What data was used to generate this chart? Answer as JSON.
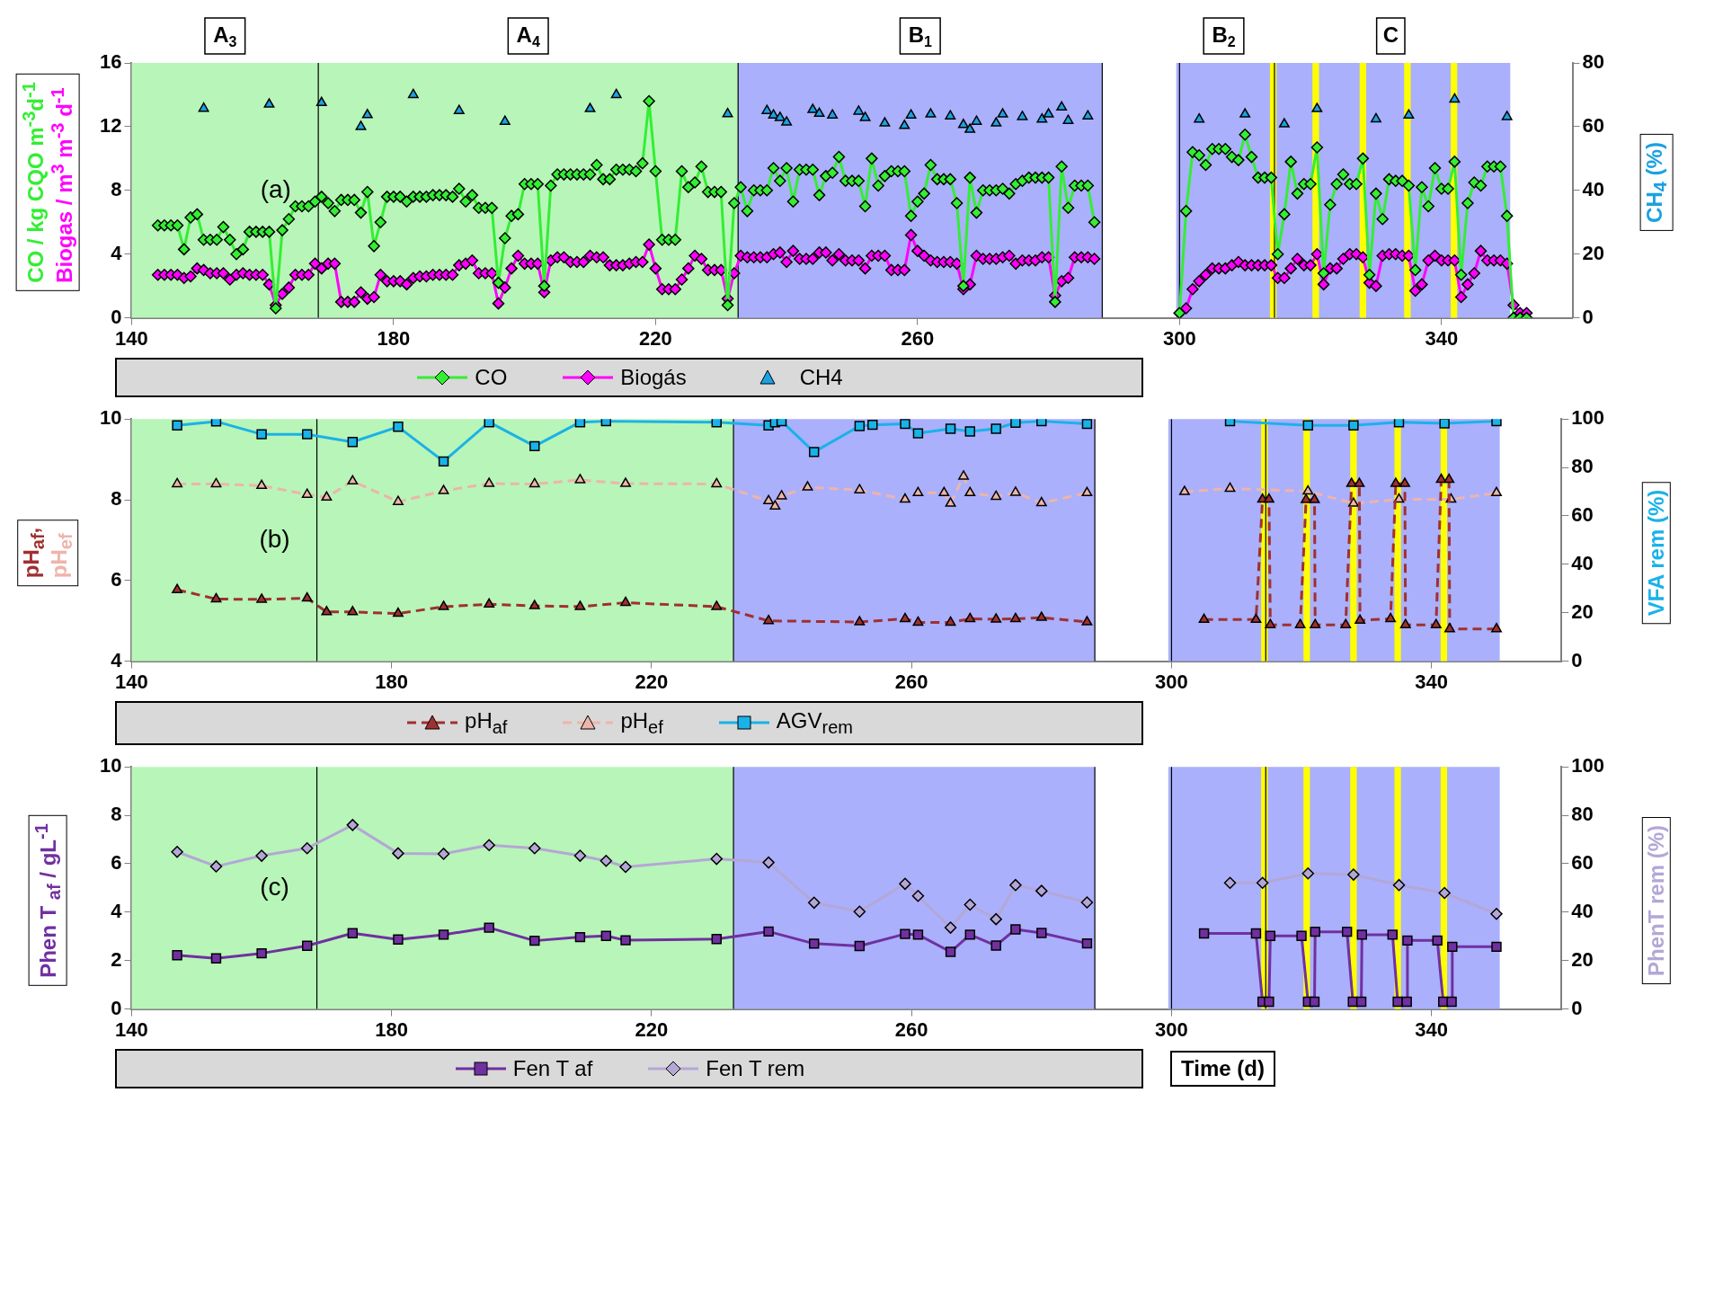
{
  "chart_data": [
    {
      "type": "line",
      "ylabel": [
        "CO / kg CQO m$^{-3}$d$^{-1}$",
        "Biogas / m$^{3}$ m$^{-3}$ d$^{-1}$"
      ],
      "y2label": "CH$_{4}$ (%)",
      "annotations": [
        "(a)"
      ],
      "legend": "bottom",
      "xlim": [
        140,
        360
      ],
      "xticks": [
        140,
        180,
        220,
        260,
        300,
        340
      ],
      "ylim": [
        0,
        16
      ],
      "yticks": [
        0,
        4,
        8,
        12,
        16
      ],
      "y2lim": [
        0,
        80
      ],
      "y2ticks": [
        0,
        20,
        40,
        60,
        80
      ],
      "x": [
        144,
        145,
        146,
        147,
        148,
        149,
        150,
        151,
        152,
        153,
        154,
        155,
        156,
        157,
        158,
        159,
        160,
        161,
        162,
        163,
        164,
        165,
        166,
        167,
        168,
        169,
        170,
        171,
        172,
        173,
        174,
        175,
        176,
        177,
        178,
        179,
        180,
        181,
        182,
        183,
        184,
        185,
        186,
        187,
        188,
        189,
        190,
        191,
        192,
        193,
        194,
        195,
        196,
        197,
        198,
        199,
        200,
        201,
        202,
        203,
        204,
        205,
        206,
        207,
        208,
        209,
        210,
        211,
        212,
        213,
        214,
        215,
        216,
        217,
        218,
        219,
        220,
        221,
        222,
        223,
        224,
        225,
        226,
        227,
        228,
        229,
        230,
        231,
        232,
        233,
        234,
        235,
        236,
        237,
        238,
        239,
        240,
        241,
        242,
        243,
        244,
        245,
        246,
        247,
        248,
        249,
        250,
        251,
        252,
        253,
        254,
        255,
        256,
        257,
        258,
        259,
        260,
        261,
        262,
        263,
        264,
        265,
        266,
        267,
        268,
        269,
        270,
        271,
        272,
        273,
        274,
        275,
        276,
        277,
        278,
        279,
        280,
        281,
        282,
        283,
        284,
        285,
        286,
        287,
        293,
        300,
        301,
        302,
        303,
        304,
        305,
        306,
        307,
        308,
        309,
        310,
        311,
        312,
        313,
        314,
        315,
        316,
        317,
        318,
        319,
        320,
        321,
        322,
        323,
        324,
        325,
        326,
        327,
        328,
        329,
        330,
        331,
        332,
        333,
        334,
        335,
        336,
        337,
        338,
        339,
        340,
        341,
        342,
        343,
        344,
        345,
        346,
        347,
        348,
        349,
        350,
        351,
        352,
        353
      ],
      "bands": [
        {
          "axis": "x",
          "from": 140,
          "to": 168.5,
          "label": "A$_{3}$",
          "color": "#b8f5b8"
        },
        {
          "axis": "x",
          "from": 168.5,
          "to": 232.6,
          "label": "A$_{4}$",
          "color": "#b8f5b8"
        },
        {
          "axis": "x",
          "from": 232.6,
          "to": 288.2,
          "label": "B$_{1}$",
          "color": "#aab0fc"
        },
        {
          "axis": "x",
          "from": 299.5,
          "to": 314,
          "label": "B$_{2}$",
          "color": "#aab0fc"
        },
        {
          "axis": "x",
          "from": 314,
          "to": 350.5,
          "label": "C",
          "color": "#aab0fc"
        },
        {
          "axis": "x",
          "from": 313.8,
          "to": 314.8,
          "color": "#ffff00"
        },
        {
          "axis": "x",
          "from": 320.3,
          "to": 321.3,
          "color": "#ffff00"
        },
        {
          "axis": "x",
          "from": 327.5,
          "to": 328.5,
          "color": "#ffff00"
        },
        {
          "axis": "x",
          "from": 334.3,
          "to": 335.3,
          "color": "#ffff00"
        },
        {
          "axis": "x",
          "from": 341.4,
          "to": 342.4,
          "color": "#ffff00"
        }
      ],
      "ref_lines": [
        {
          "axis": "x",
          "value": 168.5,
          "color": "#000000"
        },
        {
          "axis": "x",
          "value": 232.6,
          "color": "#000000"
        },
        {
          "axis": "x",
          "value": 288.2,
          "color": "#000000"
        },
        {
          "axis": "x",
          "value": 300,
          "color": "#000000"
        },
        {
          "axis": "x",
          "value": 314.5,
          "color": "#000000"
        }
      ],
      "series": [
        {
          "name": "CO",
          "color": "#33ee33",
          "marker": "diamond",
          "line_style": "solid",
          "values": [
            5.8,
            5.8,
            5.8,
            5.8,
            4.3,
            6.3,
            6.5,
            4.9,
            4.9,
            4.9,
            5.7,
            4.9,
            4.0,
            4.3,
            5.4,
            5.4,
            5.4,
            5.4,
            0.6,
            5.5,
            6.2,
            7.0,
            7.0,
            7.0,
            7.3,
            7.6,
            7.2,
            6.7,
            7.4,
            7.4,
            7.4,
            6.6,
            7.9,
            4.5,
            6.0,
            7.6,
            7.6,
            7.6,
            7.3,
            7.6,
            7.6,
            7.6,
            7.7,
            7.7,
            7.7,
            7.6,
            8.1,
            7.3,
            7.7,
            6.9,
            6.9,
            6.9,
            2.2,
            5.0,
            6.4,
            6.5,
            8.4,
            8.4,
            8.4,
            2.0,
            8.3,
            9.0,
            9.0,
            9.0,
            9.0,
            9.0,
            9.0,
            9.6,
            8.7,
            8.7,
            9.3,
            9.3,
            9.3,
            9.2,
            9.7,
            13.6,
            9.2,
            4.9,
            4.9,
            4.9,
            9.2,
            8.2,
            8.5,
            9.5,
            7.9,
            7.9,
            7.9,
            0.8,
            7.2,
            8.2,
            6.7,
            8.0,
            8.0,
            8.0,
            9.4,
            8.6,
            9.4,
            7.3,
            9.3,
            9.3,
            9.3,
            7.7,
            8.9,
            9.1,
            10.1,
            8.6,
            8.6,
            8.6,
            7.0,
            10.0,
            8.3,
            8.9,
            9.2,
            9.2,
            9.2,
            6.4,
            7.3,
            7.8,
            9.6,
            8.7,
            8.7,
            8.7,
            7.2,
            2.0,
            8.8,
            6.6,
            8.0,
            8.0,
            8.0,
            8.1,
            7.8,
            8.4,
            8.6,
            8.8,
            8.8,
            8.8,
            8.8,
            1.0,
            9.5,
            6.9,
            8.3,
            8.3,
            8.3,
            6.0,
            null,
            0.3,
            6.7,
            10.4,
            10.2,
            9.6,
            10.6,
            10.6,
            10.6,
            10.1,
            9.9,
            11.5,
            10.1,
            8.8,
            8.8,
            8.8,
            4.0,
            6.5,
            9.8,
            7.8,
            8.4,
            8.4,
            10.7,
            2.8,
            7.1,
            8.4,
            9.0,
            8.4,
            8.4,
            10.0,
            2.7,
            7.8,
            6.2,
            8.7,
            8.6,
            8.6,
            8.3,
            3.0,
            8.2,
            7.0,
            9.4,
            8.1,
            8.1,
            9.8,
            2.7,
            7.2,
            8.5,
            8.3,
            9.5,
            9.5,
            9.5,
            6.4,
            0,
            0,
            0
          ]
        },
        {
          "name": "Biogás",
          "color": "#ff00ff",
          "marker": "diamond",
          "line_style": "solid",
          "values": [
            2.7,
            2.7,
            2.7,
            2.7,
            2.5,
            2.6,
            3.1,
            3.0,
            2.8,
            2.8,
            2.8,
            2.4,
            2.7,
            2.8,
            2.7,
            2.7,
            2.7,
            2.1,
            0.8,
            1.5,
            1.9,
            2.7,
            2.7,
            2.7,
            3.4,
            3.1,
            3.4,
            3.4,
            1.0,
            1.0,
            1.0,
            1.6,
            1.2,
            1.3,
            2.7,
            2.3,
            2.3,
            2.3,
            2.1,
            2.5,
            2.6,
            2.6,
            2.7,
            2.7,
            2.7,
            2.7,
            3.3,
            3.4,
            3.6,
            2.8,
            2.8,
            2.8,
            0.9,
            1.9,
            3.1,
            3.9,
            3.4,
            3.4,
            3.4,
            1.6,
            3.6,
            3.8,
            3.8,
            3.5,
            3.5,
            3.5,
            3.9,
            3.8,
            3.8,
            3.3,
            3.3,
            3.3,
            3.4,
            3.5,
            3.5,
            4.6,
            3.1,
            1.8,
            1.8,
            1.8,
            2.4,
            3.1,
            3.9,
            3.7,
            3.0,
            3.0,
            3.0,
            1.2,
            2.8,
            3.9,
            3.8,
            3.8,
            3.8,
            3.8,
            4.0,
            4.1,
            3.5,
            4.2,
            3.7,
            3.7,
            3.7,
            4.1,
            4.1,
            3.6,
            4.0,
            3.6,
            3.6,
            3.6,
            3.1,
            3.9,
            3.9,
            3.9,
            3.0,
            3.0,
            3.0,
            5.2,
            4.2,
            3.9,
            3.6,
            3.5,
            3.5,
            3.5,
            3.4,
            1.8,
            2.1,
            3.9,
            3.7,
            3.7,
            3.7,
            3.8,
            3.9,
            3.4,
            3.6,
            3.6,
            3.6,
            3.8,
            3.8,
            1.4,
            2.3,
            2.5,
            3.8,
            3.8,
            3.8,
            3.7,
            null,
            0.3,
            0.6,
            1.8,
            2.3,
            2.7,
            3.1,
            3.1,
            3.1,
            3.3,
            3.5,
            3.3,
            3.3,
            3.3,
            3.3,
            3.3,
            2.5,
            2.5,
            3.1,
            3.7,
            3.3,
            3.3,
            4.0,
            2.1,
            3.1,
            3.1,
            3.7,
            4.0,
            4.0,
            3.8,
            2.2,
            2.0,
            3.9,
            4.0,
            4.0,
            3.9,
            3.9,
            1.7,
            2.1,
            3.6,
            3.9,
            3.6,
            3.6,
            3.6,
            1.3,
            2.1,
            2.8,
            4.2,
            3.6,
            3.6,
            3.6,
            3.4,
            0.8,
            0.3,
            0.3
          ]
        },
        {
          "name": "CH4",
          "color": "#1ba1e2",
          "type": "scatter",
          "axis": "y2",
          "marker": "triangle",
          "x": [
            151,
            161,
            169,
            175,
            176,
            183,
            190,
            197,
            210,
            214,
            231,
            237,
            238,
            239,
            240,
            244,
            245,
            247,
            251,
            252,
            255,
            258,
            259,
            262,
            265,
            267,
            268,
            269,
            272,
            273,
            276,
            279,
            280,
            282,
            283,
            286,
            303,
            310,
            316,
            321,
            330,
            335,
            342,
            350
          ],
          "values": [
            65.7,
            67,
            67.5,
            60,
            63.7,
            70,
            65,
            61.6,
            65.6,
            70,
            64,
            65,
            63.6,
            62.8,
            61.4,
            65.3,
            64.1,
            63.6,
            64.8,
            62.8,
            61.1,
            60.3,
            63.6,
            63.9,
            63.3,
            60.6,
            59.1,
            61.6,
            61.1,
            63.9,
            63.1,
            62.3,
            63.9,
            66.1,
            61.9,
            63.3,
            62.3,
            63.9,
            60.8,
            65.6,
            62.4,
            63.6,
            68.6,
            63.1
          ]
        }
      ]
    },
    {
      "type": "line",
      "ylabel": [
        "pH$_{af}$,",
        "pH$_{ef}$"
      ],
      "y2label": "VFA rem (%)",
      "annotations": [
        "(b)"
      ],
      "legend": "bottom",
      "xlim": [
        140,
        360
      ],
      "xticks": [
        140,
        180,
        220,
        260,
        300,
        340
      ],
      "ylim": [
        4,
        10
      ],
      "yticks": [
        4,
        6,
        8,
        10
      ],
      "y2lim": [
        0,
        100
      ],
      "y2ticks": [
        0,
        20,
        40,
        60,
        80,
        100
      ],
      "bands": [
        {
          "axis": "x",
          "from": 140,
          "to": 232.6,
          "color": "#b8f5b8"
        },
        {
          "axis": "x",
          "from": 232.6,
          "to": 288.2,
          "color": "#aab0fc"
        },
        {
          "axis": "x",
          "from": 299.5,
          "to": 350.5,
          "color": "#aab0fc"
        },
        {
          "axis": "x",
          "from": 313.8,
          "to": 314.8,
          "color": "#ffff00"
        },
        {
          "axis": "x",
          "from": 320.3,
          "to": 321.3,
          "color": "#ffff00"
        },
        {
          "axis": "x",
          "from": 327.5,
          "to": 328.5,
          "color": "#ffff00"
        },
        {
          "axis": "x",
          "from": 334.3,
          "to": 335.3,
          "color": "#ffff00"
        },
        {
          "axis": "x",
          "from": 341.4,
          "to": 342.4,
          "color": "#ffff00"
        }
      ],
      "ref_lines": [
        {
          "axis": "x",
          "value": 168.5,
          "color": "#000000"
        },
        {
          "axis": "x",
          "value": 232.6,
          "color": "#000000"
        },
        {
          "axis": "x",
          "value": 288.2,
          "color": "#000000"
        },
        {
          "axis": "x",
          "value": 300,
          "color": "#000000"
        },
        {
          "axis": "x",
          "value": 314.5,
          "color": "#000000"
        }
      ],
      "series": [
        {
          "name": "pH$_{af}$",
          "color": "#a03030",
          "marker": "triangle",
          "line_style": "dashed",
          "x": [
            147,
            153,
            160,
            167,
            170,
            174,
            181,
            188,
            195,
            202,
            209,
            216,
            230,
            238,
            252,
            259,
            261,
            266,
            269,
            273,
            276,
            280,
            287,
            295,
            305,
            313,
            314,
            315,
            315.2,
            319.8,
            320.7,
            322,
            322.1,
            326.8,
            327.7,
            328.9,
            329,
            333.7,
            334.5,
            335.9,
            336,
            340.7,
            341.5,
            342.7,
            342.8,
            350
          ],
          "values": [
            5.77,
            5.54,
            5.53,
            5.56,
            5.22,
            5.22,
            5.18,
            5.35,
            5.41,
            5.37,
            5.35,
            5.45,
            5.35,
            5.0,
            4.97,
            5.05,
            4.96,
            4.96,
            5.05,
            5.04,
            5.05,
            5.08,
            4.97,
            null,
            5.03,
            5.03,
            8.01,
            8.01,
            4.9,
            4.9,
            8.0,
            8.0,
            4.9,
            4.9,
            8.4,
            8.4,
            5.01,
            5.05,
            8.4,
            8.4,
            4.9,
            4.9,
            8.5,
            8.5,
            4.8,
            4.8
          ]
        },
        {
          "name": "pH$_{ef}$",
          "color": "#eeb4aa",
          "marker": "triangle",
          "line_style": "dashed",
          "x": [
            147,
            153,
            160,
            167,
            170,
            174,
            181,
            188,
            195,
            202,
            209,
            216,
            230,
            238,
            239,
            240,
            244,
            252,
            259,
            261,
            265,
            266,
            268,
            269,
            273,
            276,
            280,
            287,
            295,
            302,
            309,
            321,
            328,
            335,
            343,
            350
          ],
          "values": [
            8.39,
            8.39,
            8.35,
            8.13,
            8.06,
            8.46,
            7.95,
            8.22,
            8.4,
            8.39,
            8.49,
            8.4,
            8.39,
            7.97,
            7.84,
            8.09,
            8.31,
            8.24,
            8.01,
            8.17,
            8.17,
            7.91,
            8.58,
            8.17,
            8.08,
            8.18,
            7.92,
            8.17,
            null,
            8.2,
            8.28,
            8.21,
            7.91,
            8.01,
            8.01,
            8.17
          ]
        },
        {
          "name": "AGV$_{rem}$",
          "color": "#1ab2e8",
          "axis": "y2",
          "marker": "square",
          "line_style": "solid",
          "x": [
            147,
            153,
            160,
            167,
            174,
            181,
            188,
            195,
            202,
            209,
            213,
            230,
            238,
            239,
            240,
            245,
            252,
            254,
            259,
            261,
            266,
            269,
            273,
            276,
            280,
            287,
            295,
            309,
            321,
            328,
            335,
            342,
            350
          ],
          "values": [
            97.4,
            99,
            93.7,
            93.7,
            90.5,
            96.8,
            82.5,
            98.7,
            88.8,
            98.7,
            99.1,
            98.7,
            97.4,
            98.7,
            99.1,
            86.4,
            97.1,
            97.6,
            98,
            94.1,
            96,
            94.9,
            96,
            98.5,
            99.1,
            98,
            null,
            99.1,
            97.4,
            97.4,
            98.7,
            98.2,
            99.1
          ]
        }
      ]
    },
    {
      "type": "line",
      "ylabel": "Phen T $_{af}$ / gL$^{-1}$",
      "y2label": "PhenT rem (%)",
      "xlabel": "Time (d)",
      "annotations": [
        "(c)"
      ],
      "legend": "bottom",
      "xlim": [
        140,
        360
      ],
      "xticks": [
        140,
        180,
        220,
        260,
        300,
        340
      ],
      "ylim": [
        0,
        10
      ],
      "yticks": [
        0,
        2,
        4,
        6,
        8,
        10
      ],
      "y2lim": [
        0,
        100
      ],
      "y2ticks": [
        0,
        20,
        40,
        60,
        80,
        100
      ],
      "bands": [
        {
          "axis": "x",
          "from": 140,
          "to": 232.6,
          "color": "#b8f5b8"
        },
        {
          "axis": "x",
          "from": 232.6,
          "to": 288.2,
          "color": "#aab0fc"
        },
        {
          "axis": "x",
          "from": 299.5,
          "to": 350.5,
          "color": "#aab0fc"
        },
        {
          "axis": "x",
          "from": 313.8,
          "to": 314.8,
          "color": "#ffff00"
        },
        {
          "axis": "x",
          "from": 320.3,
          "to": 321.3,
          "color": "#ffff00"
        },
        {
          "axis": "x",
          "from": 327.5,
          "to": 328.5,
          "color": "#ffff00"
        },
        {
          "axis": "x",
          "from": 334.3,
          "to": 335.3,
          "color": "#ffff00"
        },
        {
          "axis": "x",
          "from": 341.4,
          "to": 342.4,
          "color": "#ffff00"
        }
      ],
      "ref_lines": [
        {
          "axis": "x",
          "value": 168.5,
          "color": "#000000"
        },
        {
          "axis": "x",
          "value": 232.6,
          "color": "#000000"
        },
        {
          "axis": "x",
          "value": 288.2,
          "color": "#000000"
        },
        {
          "axis": "x",
          "value": 300,
          "color": "#000000"
        },
        {
          "axis": "x",
          "value": 314.5,
          "color": "#000000"
        }
      ],
      "series": [
        {
          "name": "Fen T af",
          "color": "#7030a0",
          "marker": "square",
          "line_style": "solid",
          "x": [
            147,
            153,
            160,
            167,
            174,
            181,
            188,
            195,
            202,
            209,
            213,
            216,
            230,
            238,
            245,
            252,
            259,
            261,
            266,
            269,
            273,
            276,
            280,
            287,
            295,
            305,
            313,
            314,
            315,
            315.2,
            320,
            321,
            322,
            322.1,
            327,
            327.9,
            329.2,
            329.3,
            334,
            334.8,
            336.2,
            336.3,
            340.9,
            341.8,
            343.1,
            343.2,
            350
          ],
          "values": [
            2.22,
            2.09,
            2.3,
            2.61,
            3.13,
            2.87,
            3.07,
            3.36,
            2.82,
            2.97,
            3.02,
            2.84,
            2.89,
            3.2,
            2.7,
            2.6,
            3.1,
            3.07,
            2.36,
            3.07,
            2.62,
            3.29,
            3.14,
            2.71,
            null,
            3.12,
            3.12,
            0.3,
            0.3,
            3.02,
            3.02,
            0.3,
            0.3,
            3.19,
            3.19,
            0.3,
            0.3,
            3.07,
            3.07,
            0.3,
            0.3,
            2.83,
            2.83,
            0.3,
            0.3,
            2.57,
            2.57
          ]
        },
        {
          "name": "Fen T rem",
          "color": "#b4a7d6",
          "axis": "y2",
          "marker": "diamond",
          "line_style": "solid",
          "x": [
            147,
            153,
            160,
            167,
            174,
            181,
            188,
            195,
            202,
            209,
            213,
            216,
            230,
            238,
            245,
            252,
            259,
            261,
            266,
            269,
            273,
            276,
            280,
            287,
            295,
            309,
            314,
            321,
            328,
            335,
            342,
            350
          ],
          "values": [
            64.9,
            58.9,
            63.3,
            66.4,
            76,
            64.3,
            64.1,
            67.7,
            66.4,
            63.3,
            61.2,
            58.7,
            62,
            60.5,
            43.9,
            40.2,
            51.7,
            46.7,
            33.6,
            43.1,
            37.1,
            51.2,
            48.8,
            44,
            null,
            52.1,
            52.1,
            56,
            55.5,
            51.2,
            47.9,
            39.3
          ]
        }
      ]
    }
  ]
}
